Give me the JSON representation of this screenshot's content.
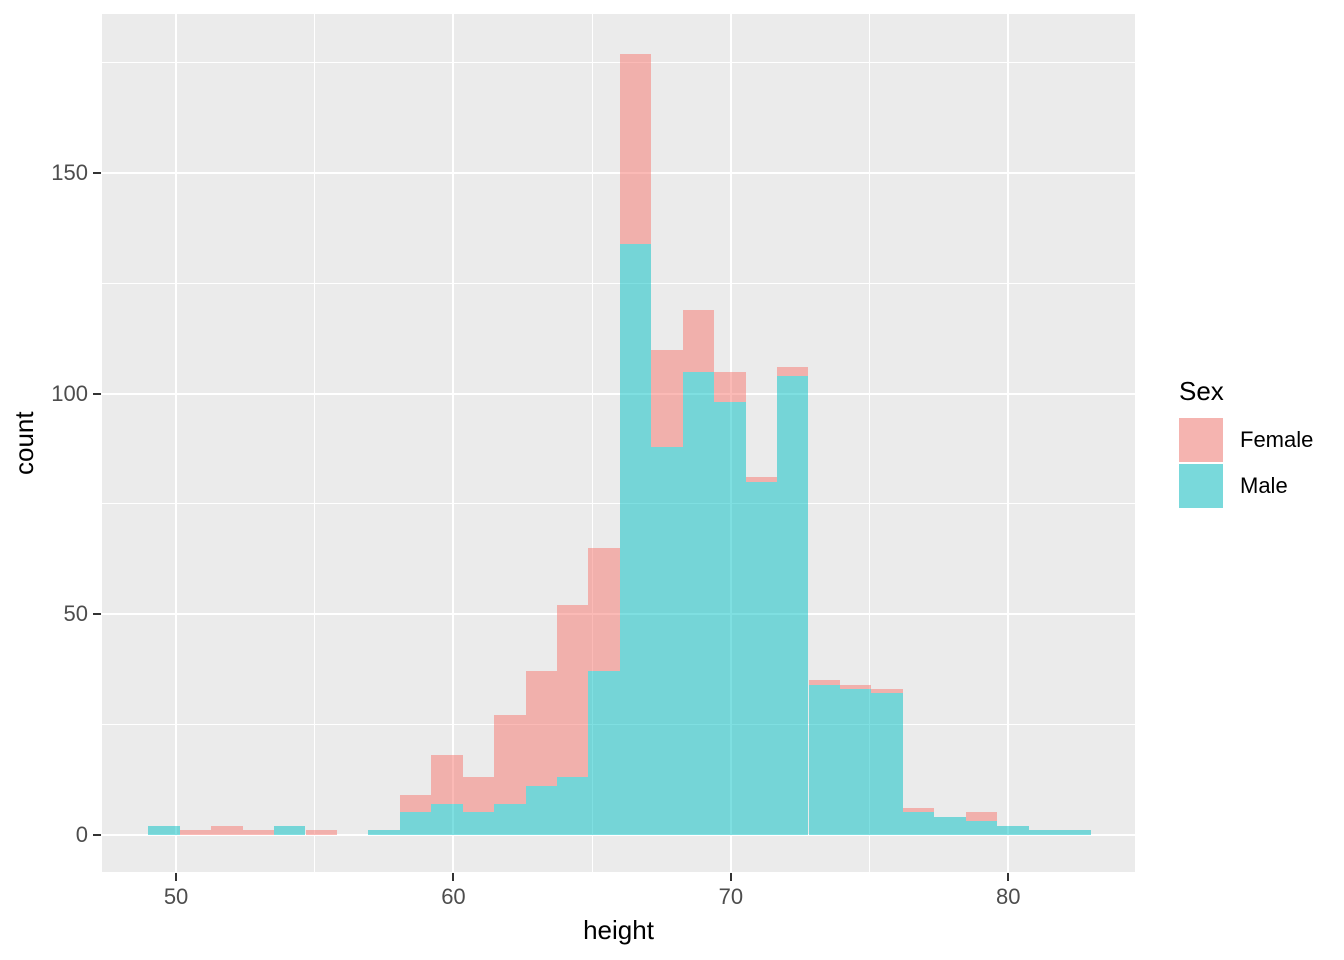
{
  "chart_data": {
    "type": "bar",
    "subtype": "stacked-histogram",
    "title": "",
    "xlabel": "height",
    "ylabel": "count",
    "legend_title": "Sex",
    "legend_position": "right",
    "grid": true,
    "colors": {
      "panel_background": "#EBEBEB",
      "gridline": "#FFFFFF",
      "tick_label": "#4D4D4D",
      "tick_mark": "#333333",
      "axis_title": "#000000",
      "legend_key_background": "#F2F2F2",
      "female_fill": "#F8766D",
      "male_fill": "#00BFC4",
      "fill_alpha": 0.5
    },
    "bin_start": 49,
    "bin_width": 1.13333,
    "bin_count": 30,
    "xlim": [
      47.33,
      84.57
    ],
    "ylim": [
      -8.5,
      186.1
    ],
    "x_ticks": [
      50,
      60,
      70,
      80
    ],
    "x_minor_ticks": [
      55,
      65,
      75
    ],
    "y_ticks": [
      0,
      50,
      100,
      150
    ],
    "y_minor_ticks": [
      25,
      75,
      125,
      175
    ],
    "stack_order_bottom_to_top": [
      "Male",
      "Female"
    ],
    "series": [
      {
        "name": "Female",
        "values": [
          0,
          1,
          2,
          1,
          0,
          1,
          0,
          0,
          4,
          11,
          8,
          20,
          26,
          39,
          28,
          43,
          22,
          14,
          7,
          1,
          2,
          1,
          1,
          1,
          1,
          0,
          2,
          0,
          0,
          0
        ]
      },
      {
        "name": "Male",
        "values": [
          2,
          0,
          0,
          0,
          2,
          0,
          0,
          1,
          5,
          7,
          5,
          7,
          11,
          13,
          37,
          134,
          88,
          105,
          98,
          80,
          104,
          34,
          33,
          32,
          5,
          4,
          3,
          2,
          1,
          1
        ]
      }
    ]
  }
}
